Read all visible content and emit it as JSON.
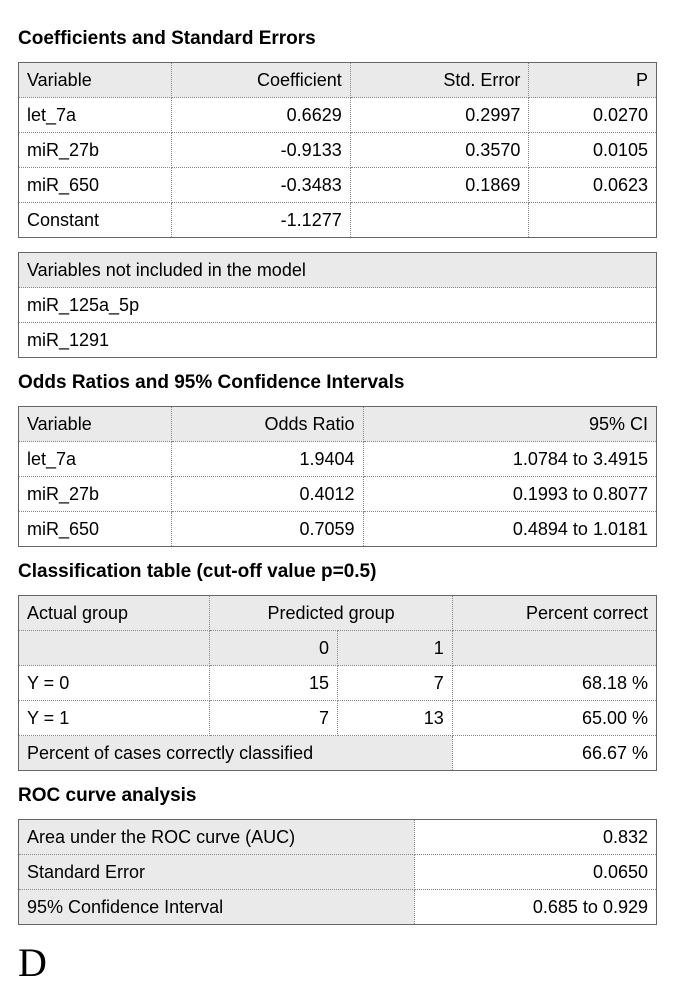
{
  "sections": {
    "coef_title": "Coefficients and Standard Errors",
    "odds_title": "Odds Ratios and 95% Confidence Intervals",
    "class_title": "Classification table (cut-off value p=0.5)",
    "roc_title": "ROC curve analysis"
  },
  "coef_table": {
    "headers": {
      "variable": "Variable",
      "coef": "Coefficient",
      "se": "Std. Error",
      "p": "P"
    },
    "rows": [
      {
        "variable": "let_7a",
        "coef": "0.6629",
        "se": "0.2997",
        "p": "0.0270"
      },
      {
        "variable": "miR_27b",
        "coef": "-0.9133",
        "se": "0.3570",
        "p": "0.0105"
      },
      {
        "variable": "miR_650",
        "coef": "-0.3483",
        "se": "0.1869",
        "p": "0.0623"
      },
      {
        "variable": "Constant",
        "coef": "-1.1277",
        "se": "",
        "p": ""
      }
    ]
  },
  "excluded_table": {
    "header": "Variables not included in the model",
    "rows": [
      "miR_125a_5p",
      "miR_1291"
    ]
  },
  "odds_table": {
    "headers": {
      "variable": "Variable",
      "or": "Odds Ratio",
      "ci": "95% CI"
    },
    "rows": [
      {
        "variable": "let_7a",
        "or": "1.9404",
        "ci": "1.0784 to 3.4915"
      },
      {
        "variable": "miR_27b",
        "or": "0.4012",
        "ci": "0.1993 to 0.8077"
      },
      {
        "variable": "miR_650",
        "or": "0.7059",
        "ci": "0.4894 to 1.0181"
      }
    ]
  },
  "class_table": {
    "headers": {
      "actual": "Actual group",
      "predicted": "Predicted group",
      "pct": "Percent correct",
      "p0": "0",
      "p1": "1"
    },
    "rows": [
      {
        "label": "Y = 0",
        "p0": "15",
        "p1": "7",
        "pct": "68.18 %"
      },
      {
        "label": "Y = 1",
        "p0": "7",
        "p1": "13",
        "pct": "65.00 %"
      }
    ],
    "footer": {
      "label": "Percent of cases correctly classified",
      "value": "66.67 %"
    }
  },
  "roc_table": {
    "rows": [
      {
        "label": "Area under the ROC curve (AUC)",
        "value": "0.832"
      },
      {
        "label": "Standard Error",
        "value": "0.0650"
      },
      {
        "label": "95% Confidence Interval",
        "value": "0.685 to 0.929"
      }
    ]
  },
  "panel_letter": "D",
  "style": {
    "header_bg": "#eaeaea",
    "cell_bg": "#ffffff",
    "border_color_dotted": "#888888",
    "border_color_solid": "#666666",
    "font_family": "Arial",
    "title_fontsize_pt": 14,
    "cell_fontsize_pt": 13
  }
}
